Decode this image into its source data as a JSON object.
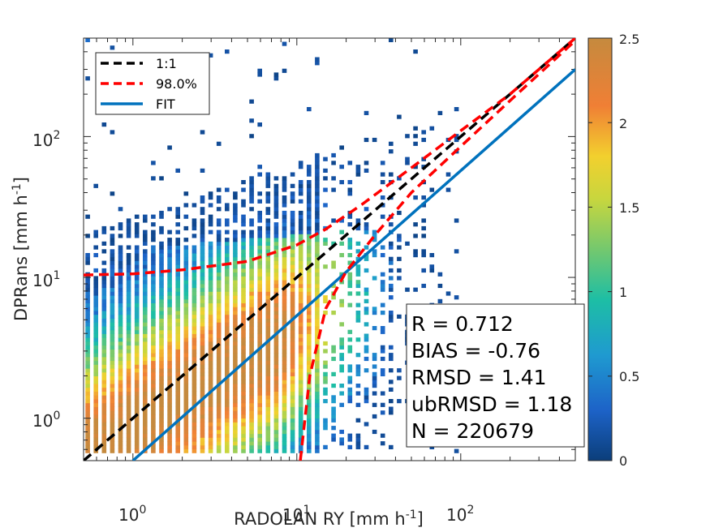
{
  "chart_data": {
    "type": "heatmap",
    "title": "",
    "xlabel": "RADOLAN RY [mm h",
    "xlabel_sup": "-1",
    "xlabel_end": "]",
    "ylabel": "DPRans [mm h",
    "ylabel_sup": "-1",
    "ylabel_end": "]",
    "xscale": "log",
    "yscale": "log",
    "xlim": [
      0.5,
      500
    ],
    "ylim": [
      0.5,
      500
    ],
    "x_tick_labels": [
      {
        "base": "10",
        "exp": "0",
        "value": 1
      },
      {
        "base": "10",
        "exp": "1",
        "value": 10
      },
      {
        "base": "10",
        "exp": "2",
        "value": 100
      }
    ],
    "y_tick_labels": [
      {
        "base": "10",
        "exp": "0",
        "value": 1
      },
      {
        "base": "10",
        "exp": "1",
        "value": 10
      },
      {
        "base": "10",
        "exp": "2",
        "value": 100
      }
    ],
    "grid": false,
    "colorbar": {
      "min": 0,
      "max": 2.5,
      "ticks": [
        "0",
        "0.5",
        "1",
        "1.5",
        "2",
        "2.5"
      ],
      "colormap": "parula-like"
    },
    "legend": {
      "placement": "top-left",
      "entries": [
        {
          "label": "1:1",
          "color": "#000000",
          "style": "dashed"
        },
        {
          "label": "98.0%",
          "color": "#ff0000",
          "style": "dashed"
        },
        {
          "label": "FIT",
          "color": "#0072bd",
          "style": "solid"
        }
      ]
    },
    "series": [
      {
        "name": "1:1",
        "kind": "identity",
        "x": [
          0.5,
          500
        ],
        "y": [
          0.5,
          500
        ]
      },
      {
        "name": "FIT",
        "kind": "fit",
        "x": [
          1.0,
          500
        ],
        "y": [
          0.5,
          300
        ]
      },
      {
        "name": "98.0%",
        "kind": "upper",
        "x": [
          0.5,
          1,
          2,
          5,
          10,
          15,
          25,
          50,
          100,
          200,
          500
        ],
        "y": [
          10.4,
          10.6,
          11.3,
          13,
          17,
          22,
          33,
          60,
          110,
          200,
          500
        ]
      },
      {
        "name": "98.0%",
        "kind": "lower",
        "x": [
          10.5,
          12,
          15,
          20,
          30,
          50,
          100,
          200,
          500
        ],
        "y": [
          0.5,
          2.0,
          6.0,
          11.0,
          20.0,
          40.0,
          85,
          180,
          480
        ]
      }
    ],
    "stats": [
      {
        "label": "R = 0.712"
      },
      {
        "label": "BIAS = -0.76"
      },
      {
        "label": "RMSD = 1.41"
      },
      {
        "label": "ubRMSD = 1.18"
      },
      {
        "label": "N = 220679"
      }
    ]
  }
}
